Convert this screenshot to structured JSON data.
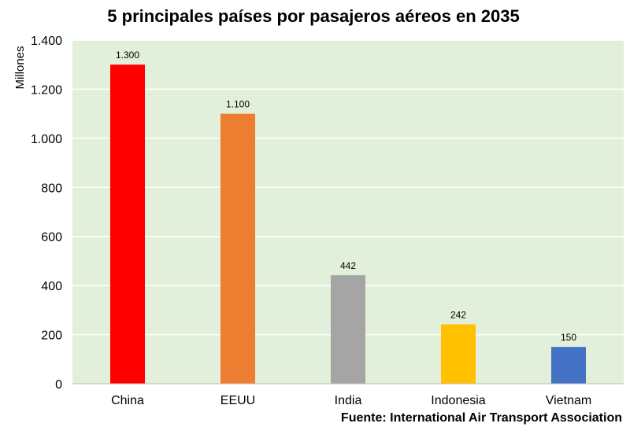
{
  "chart_data": {
    "type": "bar",
    "title": "5 principales países por pasajeros aéreos en 2035",
    "ylabel": "Millones",
    "xlabel": "",
    "categories": [
      "China",
      "EEUU",
      "India",
      "Indonesia",
      "Vietnam"
    ],
    "values": [
      1300,
      1100,
      442,
      242,
      150
    ],
    "data_labels": [
      "1.300",
      "1.100",
      "442",
      "242",
      "150"
    ],
    "colors": [
      "#ff0000",
      "#ed7d31",
      "#a5a5a5",
      "#ffc000",
      "#4472c4"
    ],
    "ylim": [
      0,
      1400
    ],
    "yticks": [
      0,
      200,
      400,
      600,
      800,
      1000,
      1200,
      1400
    ],
    "ytick_labels": [
      "0",
      "200",
      "400",
      "600",
      "800",
      "1.000",
      "1.200",
      "1.400"
    ],
    "grid": true,
    "plot_background": "#e2efda",
    "gridline_color": "#ffffff",
    "source": "Fuente: International Air Transport Association"
  }
}
